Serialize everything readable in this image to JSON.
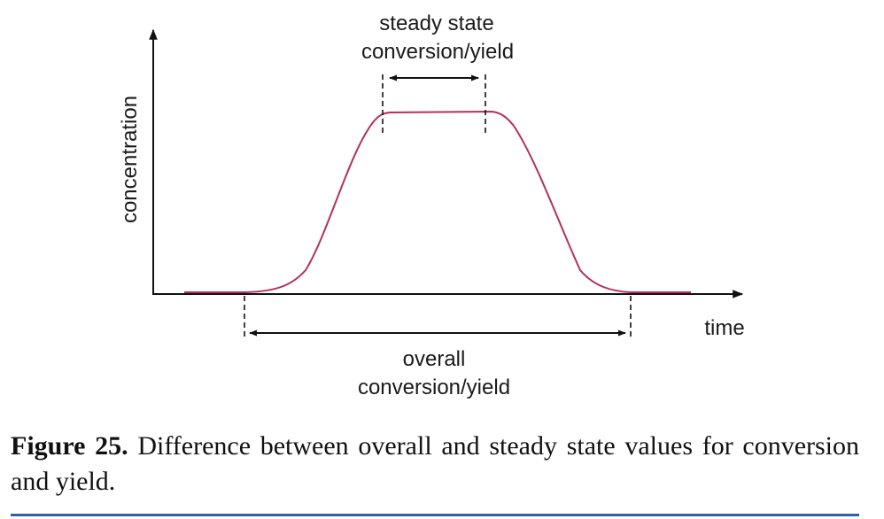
{
  "diagram": {
    "y_axis_label": "concentration",
    "x_axis_label": "time",
    "steady_state_label_line1": "steady state",
    "steady_state_label_line2": "conversion/yield",
    "overall_label_line1": "overall",
    "overall_label_line2": "conversion/yield",
    "curve_color": "#b5305a"
  },
  "caption": {
    "label": "Figure 25.",
    "text": "Difference between overall and steady state values for conversion and yield."
  }
}
